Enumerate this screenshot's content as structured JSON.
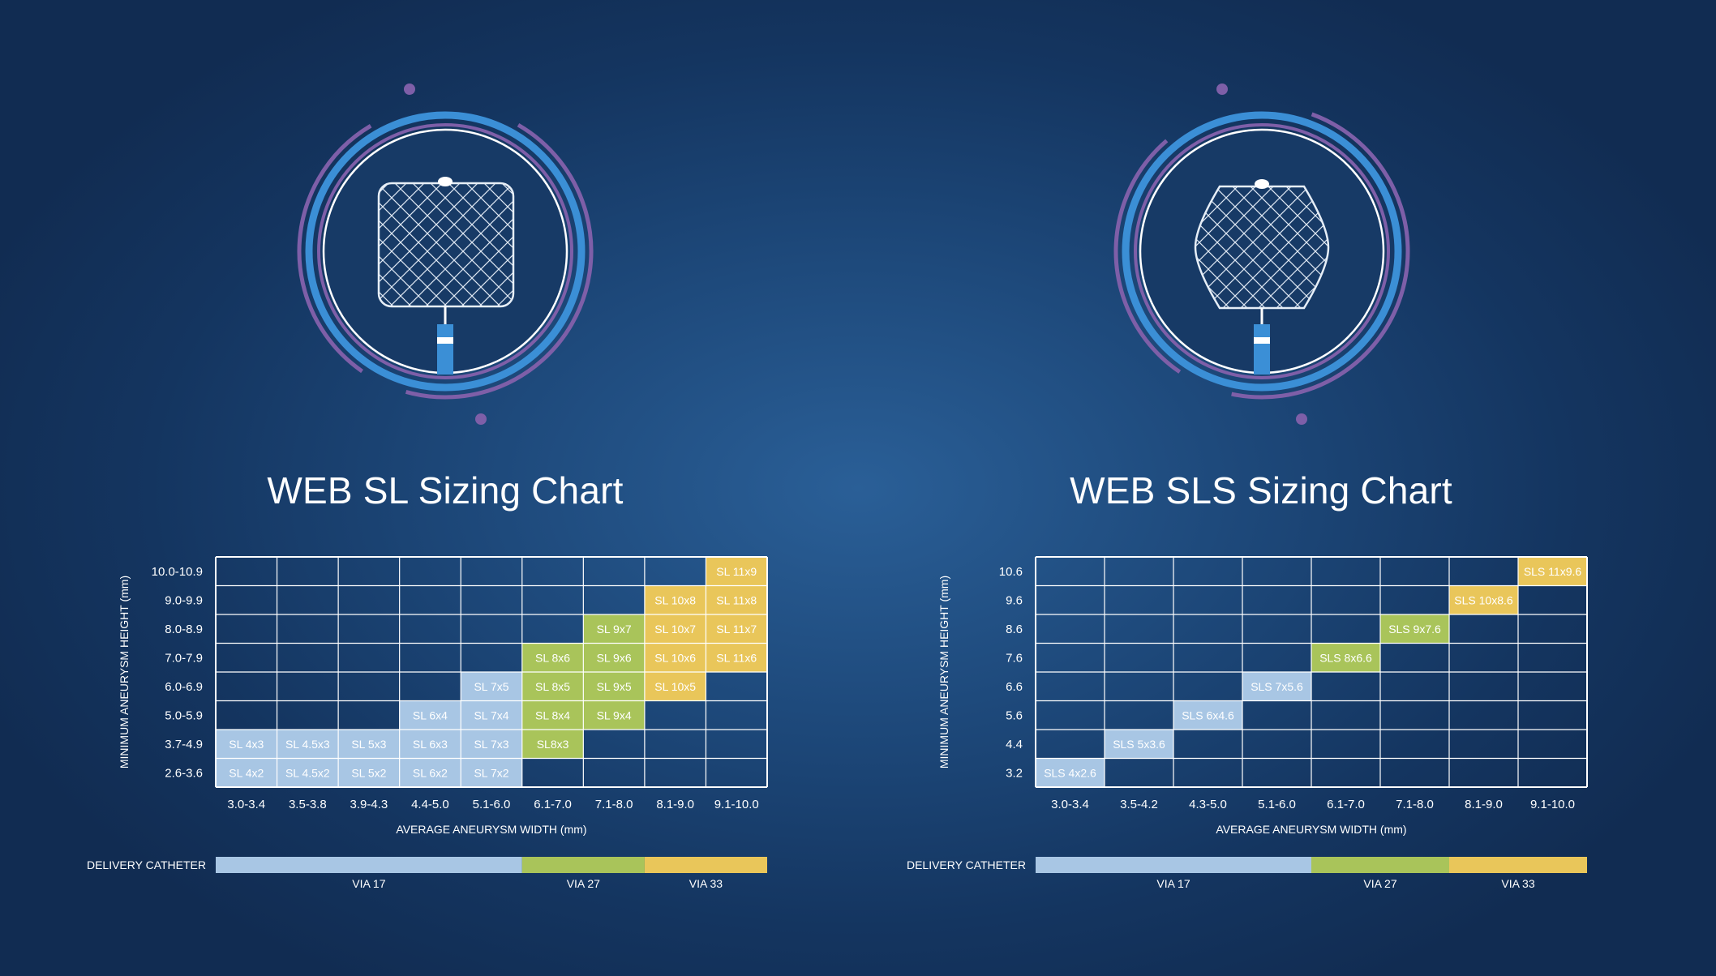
{
  "colors": {
    "via17": "#a8c6e4",
    "via27": "#a9c45a",
    "via33": "#e9c65a",
    "grid_line": "#ffffff",
    "ring_blue": "#3b8fd6",
    "ring_purple": "#7e5fa8"
  },
  "icons": [
    "web-sl-device-icon",
    "web-sls-device-icon"
  ],
  "chart_data": [
    {
      "type": "table",
      "title": "WEB SL Sizing Chart",
      "xlabel": "AVERAGE ANEURYSM WIDTH (mm)",
      "ylabel": "MINIMUM ANEURYSM HEIGHT (mm)",
      "x_categories": [
        "3.0-3.4",
        "3.5-3.8",
        "3.9-4.3",
        "4.4-5.0",
        "5.1-6.0",
        "6.1-7.0",
        "7.1-8.0",
        "8.1-9.0",
        "9.1-10.0"
      ],
      "y_categories": [
        "10.0-10.9",
        "9.0-9.9",
        "8.0-8.9",
        "7.0-7.9",
        "6.0-6.9",
        "5.0-5.9",
        "3.7-4.9",
        "2.6-3.6"
      ],
      "cells": [
        {
          "col": 8,
          "row": 0,
          "label": "SL 11x9",
          "catheter": "VIA 33"
        },
        {
          "col": 7,
          "row": 1,
          "label": "SL 10x8",
          "catheter": "VIA 33"
        },
        {
          "col": 8,
          "row": 1,
          "label": "SL 11x8",
          "catheter": "VIA 33"
        },
        {
          "col": 6,
          "row": 2,
          "label": "SL 9x7",
          "catheter": "VIA 27"
        },
        {
          "col": 7,
          "row": 2,
          "label": "SL 10x7",
          "catheter": "VIA 33"
        },
        {
          "col": 8,
          "row": 2,
          "label": "SL 11x7",
          "catheter": "VIA 33"
        },
        {
          "col": 5,
          "row": 3,
          "label": "SL 8x6",
          "catheter": "VIA 27"
        },
        {
          "col": 6,
          "row": 3,
          "label": "SL 9x6",
          "catheter": "VIA 27"
        },
        {
          "col": 7,
          "row": 3,
          "label": "SL 10x6",
          "catheter": "VIA 33"
        },
        {
          "col": 8,
          "row": 3,
          "label": "SL 11x6",
          "catheter": "VIA 33"
        },
        {
          "col": 4,
          "row": 4,
          "label": "SL 7x5",
          "catheter": "VIA 17"
        },
        {
          "col": 5,
          "row": 4,
          "label": "SL 8x5",
          "catheter": "VIA 27"
        },
        {
          "col": 6,
          "row": 4,
          "label": "SL 9x5",
          "catheter": "VIA 27"
        },
        {
          "col": 7,
          "row": 4,
          "label": "SL 10x5",
          "catheter": "VIA 33"
        },
        {
          "col": 3,
          "row": 5,
          "label": "SL 6x4",
          "catheter": "VIA 17"
        },
        {
          "col": 4,
          "row": 5,
          "label": "SL 7x4",
          "catheter": "VIA 17"
        },
        {
          "col": 5,
          "row": 5,
          "label": "SL 8x4",
          "catheter": "VIA 27"
        },
        {
          "col": 6,
          "row": 5,
          "label": "SL 9x4",
          "catheter": "VIA 27"
        },
        {
          "col": 0,
          "row": 6,
          "label": "SL 4x3",
          "catheter": "VIA 17"
        },
        {
          "col": 1,
          "row": 6,
          "label": "SL 4.5x3",
          "catheter": "VIA 17"
        },
        {
          "col": 2,
          "row": 6,
          "label": "SL 5x3",
          "catheter": "VIA 17"
        },
        {
          "col": 3,
          "row": 6,
          "label": "SL 6x3",
          "catheter": "VIA 17"
        },
        {
          "col": 4,
          "row": 6,
          "label": "SL 7x3",
          "catheter": "VIA 17"
        },
        {
          "col": 5,
          "row": 6,
          "label": "SL8x3",
          "catheter": "VIA 27"
        },
        {
          "col": 0,
          "row": 7,
          "label": "SL 4x2",
          "catheter": "VIA 17"
        },
        {
          "col": 1,
          "row": 7,
          "label": "SL 4.5x2",
          "catheter": "VIA 17"
        },
        {
          "col": 2,
          "row": 7,
          "label": "SL 5x2",
          "catheter": "VIA 17"
        },
        {
          "col": 3,
          "row": 7,
          "label": "SL 6x2",
          "catheter": "VIA 17"
        },
        {
          "col": 4,
          "row": 7,
          "label": "SL 7x2",
          "catheter": "VIA 17"
        }
      ],
      "catheter_bar": {
        "label": "DELIVERY CATHETER",
        "segments": [
          {
            "name": "VIA 17",
            "from_col": 0,
            "to_col": 4
          },
          {
            "name": "VIA 27",
            "from_col": 5,
            "to_col": 6
          },
          {
            "name": "VIA 33",
            "from_col": 7,
            "to_col": 8
          }
        ]
      }
    },
    {
      "type": "table",
      "title": "WEB SLS Sizing Chart",
      "xlabel": "AVERAGE ANEURYSM WIDTH (mm)",
      "ylabel": "MINIMUM ANEURYSM HEIGHT (mm)",
      "x_categories": [
        "3.0-3.4",
        "3.5-4.2",
        "4.3-5.0",
        "5.1-6.0",
        "6.1-7.0",
        "7.1-8.0",
        "8.1-9.0",
        "9.1-10.0"
      ],
      "y_categories": [
        "10.6",
        "9.6",
        "8.6",
        "7.6",
        "6.6",
        "5.6",
        "4.4",
        "3.2"
      ],
      "cells": [
        {
          "col": 7,
          "row": 0,
          "label": "SLS 11x9.6",
          "catheter": "VIA 33"
        },
        {
          "col": 6,
          "row": 1,
          "label": "SLS 10x8.6",
          "catheter": "VIA 33"
        },
        {
          "col": 5,
          "row": 2,
          "label": "SLS 9x7.6",
          "catheter": "VIA 27"
        },
        {
          "col": 4,
          "row": 3,
          "label": "SLS 8x6.6",
          "catheter": "VIA 27"
        },
        {
          "col": 3,
          "row": 4,
          "label": "SLS 7x5.6",
          "catheter": "VIA 17"
        },
        {
          "col": 2,
          "row": 5,
          "label": "SLS 6x4.6",
          "catheter": "VIA 17"
        },
        {
          "col": 1,
          "row": 6,
          "label": "SLS 5x3.6",
          "catheter": "VIA 17"
        },
        {
          "col": 0,
          "row": 7,
          "label": "SLS 4x2.6",
          "catheter": "VIA 17"
        }
      ],
      "catheter_bar": {
        "label": "DELIVERY CATHETER",
        "segments": [
          {
            "name": "VIA 17",
            "from_col": 0,
            "to_col": 3
          },
          {
            "name": "VIA 27",
            "from_col": 4,
            "to_col": 5
          },
          {
            "name": "VIA 33",
            "from_col": 6,
            "to_col": 7
          }
        ]
      }
    }
  ]
}
